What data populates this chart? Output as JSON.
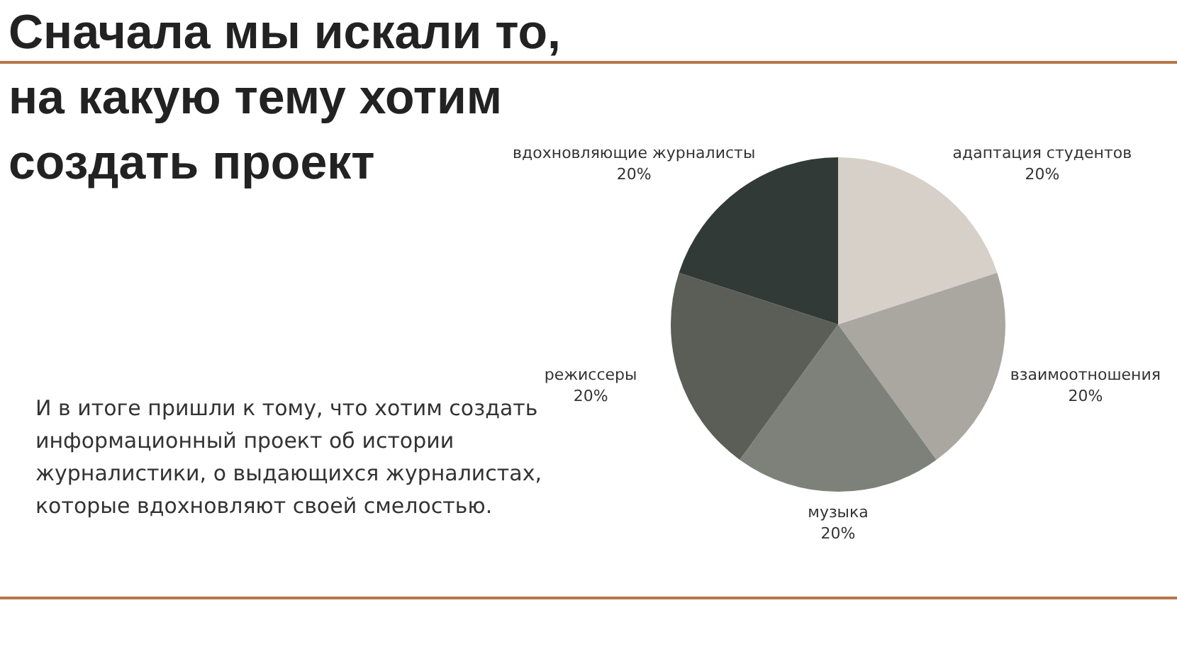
{
  "chart_data": {
    "type": "pie",
    "title": "Сначала мы искали то, на какую тему хотим создать проект",
    "annotations": [
      "И в итоге пришли к тому, что хотим создать информационный проект об истории журналистики, о выдающихся журналистах, которые вдохновляют своей смелостью."
    ],
    "categories": [
      "адаптация студентов",
      "взаимоотношения",
      "музыка",
      "режиссеры",
      "вдохновляющие журналисты"
    ],
    "values": [
      20,
      20,
      20,
      20,
      20
    ],
    "colors": [
      "#d6d0c9",
      "#aaa7a0",
      "#7e817a",
      "#5a5e57",
      "#323a37"
    ],
    "value_labels": [
      "20%",
      "20%",
      "20%",
      "20%",
      "20%"
    ],
    "legend": false
  }
}
